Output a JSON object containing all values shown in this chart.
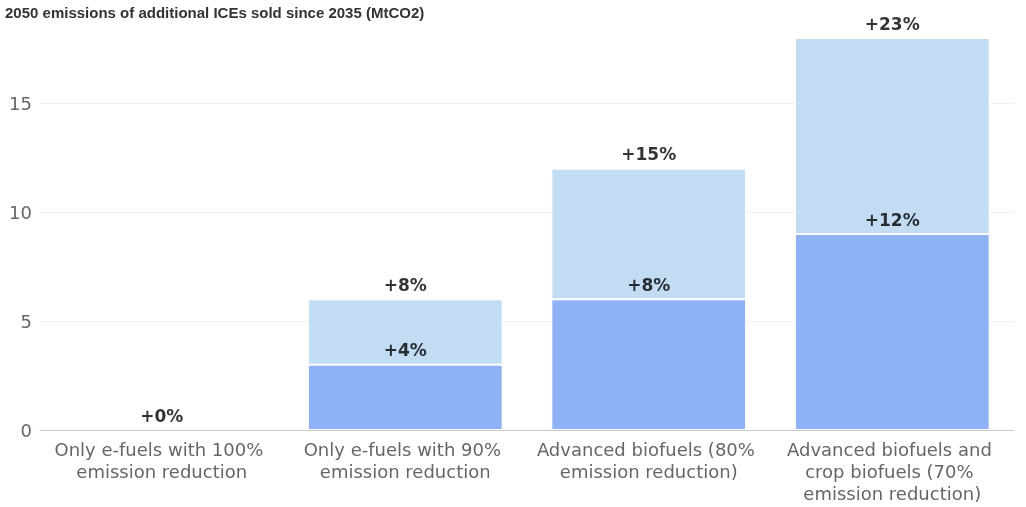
{
  "chart_data": {
    "type": "bar",
    "title": "2050 emissions of additional ICEs sold since 2035 (MtCO2)",
    "stacked": true,
    "categories": [
      "Only e-fuels with 100% emission reduction",
      "Only e-fuels with 90% emission reduction",
      "Advanced biofuels (80% emission reduction)",
      "Advanced biofuels and crop biofuels (70% emission reduction)"
    ],
    "series": [
      {
        "color": "#8fb1f5",
        "values": [
          0,
          3,
          6,
          9
        ]
      },
      {
        "color": "#c2dcf4",
        "values": [
          0,
          3,
          6,
          9
        ]
      }
    ],
    "ylim": [
      0,
      18
    ],
    "yticks": [
      0,
      5,
      10,
      15
    ],
    "grid": "y",
    "annotations": [
      {
        "text": "+0%",
        "x": "Only e-fuels with 100% emission reduction",
        "y": 0
      },
      {
        "text": "+4%",
        "x": "Only e-fuels with 90% emission reduction",
        "y": 3
      },
      {
        "text": "+8%",
        "x": "Only e-fuels with 90% emission reduction",
        "y": 6
      },
      {
        "text": "+8%",
        "x": "Advanced biofuels (80% emission reduction)",
        "y": 6
      },
      {
        "text": "+15%",
        "x": "Advanced biofuels (80% emission reduction)",
        "y": 12
      },
      {
        "text": "+12%",
        "x": "Advanced biofuels and crop biofuels (70% emission reduction)",
        "y": 9
      },
      {
        "text": "+23%",
        "x": "Advanced biofuels and crop biofuels (70% emission reduction)",
        "y": 18
      }
    ]
  }
}
